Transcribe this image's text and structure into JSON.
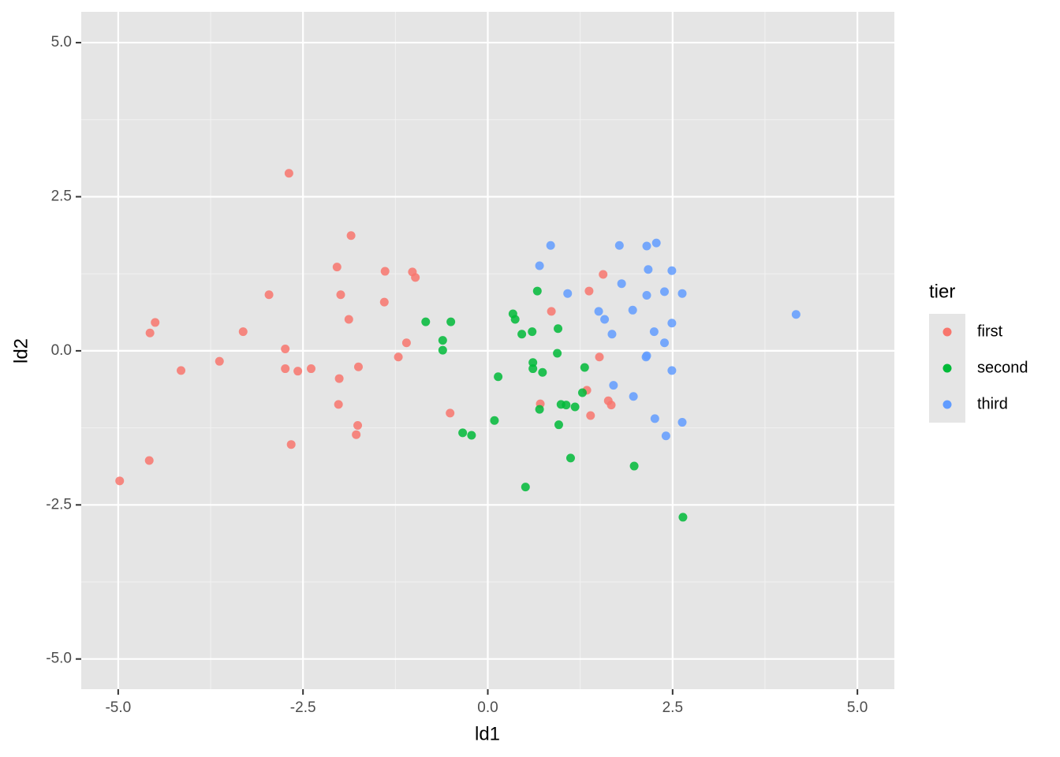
{
  "chart_data": {
    "type": "scatter",
    "x_label": "ld1",
    "y_label": "ld2",
    "legend_title": "tier",
    "xlim": [
      -5.5,
      5.5
    ],
    "ylim": [
      -5.49,
      5.5
    ],
    "xticks": [
      {
        "value": -5,
        "label": "-5.0"
      },
      -2.5,
      {
        "value": 0,
        "label": "0.0"
      },
      2.5,
      {
        "value": 5,
        "label": "5.0"
      }
    ],
    "yticks": [
      {
        "value": -5,
        "label": "-5.0"
      },
      -2.5,
      {
        "value": 0,
        "label": "0.0"
      },
      2.5,
      {
        "value": 5,
        "label": "5.0"
      }
    ],
    "grid": true,
    "legend": "right",
    "series": [
      {
        "name": "first",
        "color": "#F8766D",
        "x": [
          -2.69,
          -1.85,
          -2.04,
          -1.39,
          -1.02,
          -0.98,
          -2.96,
          -1.99,
          -1.4,
          -4.5,
          -1.88,
          -4.57,
          -3.31,
          -1.1,
          -2.74,
          -3.63,
          -1.21,
          -4.15,
          -2.74,
          -2.57,
          -2.39,
          -1.75,
          -2.01,
          -2.02,
          -1.76,
          -1.78,
          -2.66,
          -4.58,
          -4.98,
          -0.51,
          0.86,
          0.71,
          1.34,
          1.39,
          1.63,
          1.67,
          1.37,
          1.56,
          1.51
        ],
        "y": [
          2.88,
          1.87,
          1.36,
          1.29,
          1.28,
          1.19,
          0.91,
          0.91,
          0.79,
          0.46,
          0.51,
          0.29,
          0.31,
          0.13,
          0.03,
          -0.17,
          -0.1,
          -0.32,
          -0.29,
          -0.33,
          -0.29,
          -0.26,
          -0.45,
          -0.87,
          -1.21,
          -1.36,
          -1.52,
          -1.78,
          -2.11,
          -1.01,
          0.64,
          -0.86,
          -0.64,
          -1.05,
          -0.81,
          -0.88,
          0.97,
          1.24,
          -0.1
        ]
      },
      {
        "name": "second",
        "color": "#00BA38",
        "x": [
          -0.84,
          -0.5,
          -0.61,
          -0.61,
          0.67,
          0.34,
          0.37,
          0.46,
          0.6,
          0.95,
          0.94,
          0.61,
          0.61,
          0.74,
          1.31,
          0.14,
          1.28,
          0.99,
          1.06,
          1.18,
          0.7,
          0.09,
          0.96,
          -0.34,
          -0.22,
          1.12,
          1.98,
          0.51,
          2.64
        ],
        "y": [
          0.47,
          0.47,
          0.17,
          0.01,
          0.97,
          0.6,
          0.51,
          0.27,
          0.31,
          0.36,
          -0.04,
          -0.19,
          -0.29,
          -0.35,
          -0.27,
          -0.42,
          -0.68,
          -0.87,
          -0.88,
          -0.91,
          -0.95,
          -1.13,
          -1.2,
          -1.33,
          -1.37,
          -1.74,
          -1.87,
          -2.21,
          -2.7
        ]
      },
      {
        "name": "third",
        "color": "#619CFF",
        "x": [
          0.85,
          0.7,
          1.78,
          2.15,
          2.28,
          2.17,
          2.49,
          1.81,
          1.08,
          2.15,
          2.39,
          2.63,
          1.5,
          1.96,
          4.17,
          1.58,
          2.49,
          2.25,
          1.68,
          2.39,
          2.15,
          2.14,
          2.49,
          1.7,
          1.97,
          2.26,
          2.63,
          2.41
        ],
        "y": [
          1.71,
          1.38,
          1.71,
          1.7,
          1.75,
          1.32,
          1.3,
          1.09,
          0.93,
          0.9,
          0.96,
          0.93,
          0.64,
          0.66,
          0.59,
          0.51,
          0.45,
          0.31,
          0.27,
          0.13,
          -0.08,
          -0.1,
          -0.32,
          -0.56,
          -0.74,
          -1.1,
          -1.16,
          -1.38
        ]
      }
    ]
  }
}
